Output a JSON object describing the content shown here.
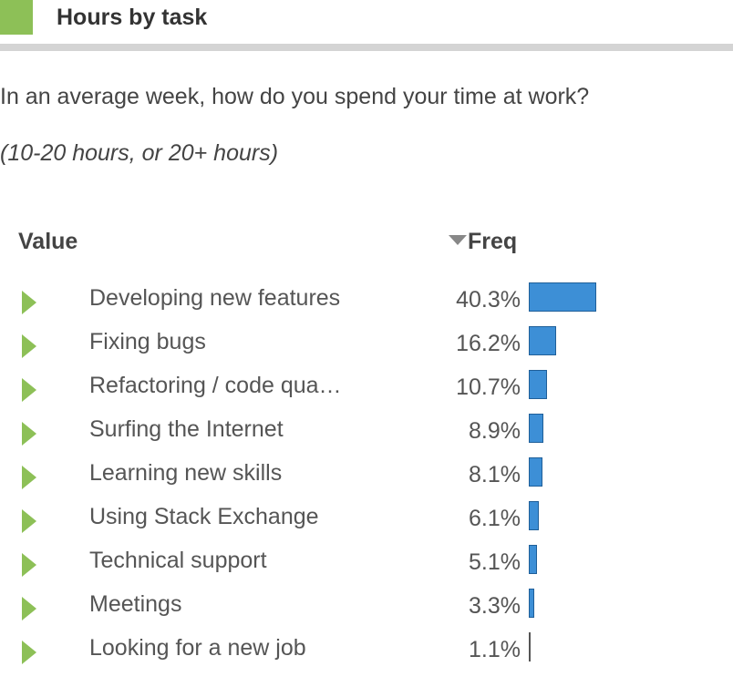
{
  "header": {
    "title": "Hours by task",
    "accent_color": "#8dc057"
  },
  "question": "In an average week, how do you spend your time at work?",
  "subnote": "(10-20 hours, or 20+ hours)",
  "table": {
    "columns": {
      "value": "Value",
      "freq": "Freq",
      "sort_icon": "sort-descending-icon"
    },
    "bar_color": "#3d8fd6",
    "rows": [
      {
        "label": "Developing new features",
        "freq": "40.3%",
        "value": 40.3
      },
      {
        "label": "Fixing bugs",
        "freq": "16.2%",
        "value": 16.2
      },
      {
        "label": "Refactoring / code qua…",
        "freq": "10.7%",
        "value": 10.7
      },
      {
        "label": "Surfing the Internet",
        "freq": "8.9%",
        "value": 8.9
      },
      {
        "label": "Learning new skills",
        "freq": "8.1%",
        "value": 8.1
      },
      {
        "label": "Using Stack Exchange",
        "freq": "6.1%",
        "value": 6.1
      },
      {
        "label": "Technical support",
        "freq": "5.1%",
        "value": 5.1
      },
      {
        "label": "Meetings",
        "freq": "3.3%",
        "value": 3.3
      },
      {
        "label": "Looking for a new job",
        "freq": "1.1%",
        "value": 1.1
      }
    ]
  }
}
